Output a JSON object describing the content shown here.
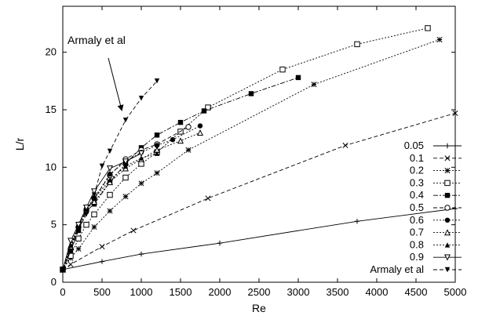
{
  "chart_data": {
    "type": "line",
    "title": "",
    "xlabel": "Re",
    "ylabel": "L/r",
    "xlim": [
      0,
      5000
    ],
    "ylim": [
      0,
      24
    ],
    "x_ticks": [
      0,
      500,
      1000,
      1500,
      2000,
      2500,
      3000,
      3500,
      4000,
      4500,
      5000
    ],
    "y_ticks": [
      0,
      5,
      10,
      15,
      20
    ],
    "grid": false,
    "legend_position": "right",
    "annotations": [
      {
        "text": "Armaly et al",
        "arrow_to_series": "Armaly et al"
      }
    ],
    "series": [
      {
        "name": "0.05",
        "marker": "plus",
        "dash": "solid",
        "points": [
          [
            0,
            1.1
          ],
          [
            500,
            1.8
          ],
          [
            1000,
            2.45
          ],
          [
            2000,
            3.4
          ],
          [
            3750,
            5.3
          ],
          [
            5000,
            6.4
          ]
        ]
      },
      {
        "name": "0.1",
        "marker": "cross",
        "dash": "dashed",
        "points": [
          [
            0,
            1.1
          ],
          [
            100,
            1.55
          ],
          [
            500,
            3.1
          ],
          [
            900,
            4.5
          ],
          [
            1850,
            7.3
          ],
          [
            3600,
            11.9
          ],
          [
            5000,
            14.7
          ]
        ]
      },
      {
        "name": "0.2",
        "marker": "asterisk",
        "dash": "dotted",
        "points": [
          [
            0,
            1.1
          ],
          [
            100,
            2.1
          ],
          [
            200,
            2.9
          ],
          [
            400,
            4.8
          ],
          [
            600,
            6.2
          ],
          [
            800,
            7.45
          ],
          [
            1000,
            8.6
          ],
          [
            1200,
            9.5
          ],
          [
            1600,
            11.5
          ],
          [
            3200,
            17.2
          ],
          [
            4800,
            21.1
          ]
        ]
      },
      {
        "name": "0.3",
        "marker": "square-open",
        "dash": "dotted",
        "points": [
          [
            0,
            1.1
          ],
          [
            100,
            2.3
          ],
          [
            200,
            3.8
          ],
          [
            300,
            5.0
          ],
          [
            400,
            5.9
          ],
          [
            600,
            7.6
          ],
          [
            800,
            9.1
          ],
          [
            1000,
            10.3
          ],
          [
            1200,
            11.3
          ],
          [
            1500,
            13.1
          ],
          [
            1850,
            15.2
          ],
          [
            2800,
            18.5
          ],
          [
            3750,
            20.7
          ],
          [
            4650,
            22.1
          ]
        ]
      },
      {
        "name": "0.4",
        "marker": "square-filled",
        "dash": "dashdot",
        "points": [
          [
            0,
            1.1
          ],
          [
            100,
            2.7
          ],
          [
            200,
            4.5
          ],
          [
            300,
            6.2
          ],
          [
            400,
            6.8
          ],
          [
            600,
            8.7
          ],
          [
            800,
            10.3
          ],
          [
            1000,
            11.7
          ],
          [
            1200,
            12.8
          ],
          [
            1500,
            13.9
          ],
          [
            1800,
            14.9
          ],
          [
            2400,
            16.4
          ],
          [
            3000,
            17.8
          ]
        ]
      },
      {
        "name": "0.5",
        "marker": "circle-open",
        "dash": "dashed",
        "points": [
          [
            0,
            1.1
          ],
          [
            100,
            2.9
          ],
          [
            200,
            4.8
          ],
          [
            300,
            6.3
          ],
          [
            400,
            7.3
          ],
          [
            600,
            9.3
          ],
          [
            800,
            10.7
          ],
          [
            1000,
            11.5
          ],
          [
            1200,
            12.0
          ],
          [
            1600,
            13.5
          ]
        ]
      },
      {
        "name": "0.6",
        "marker": "circle-filled",
        "dash": "dotted",
        "points": [
          [
            0,
            1.1
          ],
          [
            100,
            3.0
          ],
          [
            200,
            4.9
          ],
          [
            300,
            6.4
          ],
          [
            400,
            7.3
          ],
          [
            600,
            9.4
          ],
          [
            800,
            10.5
          ],
          [
            1000,
            11.3
          ],
          [
            1200,
            11.9
          ],
          [
            1400,
            12.4
          ],
          [
            1750,
            13.6
          ]
        ]
      },
      {
        "name": "0.7",
        "marker": "triangle-open",
        "dash": "dotted",
        "points": [
          [
            0,
            1.1
          ],
          [
            100,
            3.1
          ],
          [
            200,
            5.0
          ],
          [
            300,
            6.4
          ],
          [
            400,
            7.0
          ],
          [
            600,
            8.7
          ],
          [
            800,
            9.9
          ],
          [
            1000,
            10.7
          ],
          [
            1200,
            11.5
          ],
          [
            1500,
            12.3
          ],
          [
            1750,
            13.0
          ]
        ]
      },
      {
        "name": "0.8",
        "marker": "triangle-filled",
        "dash": "dotted",
        "points": [
          [
            0,
            1.1
          ],
          [
            100,
            3.2
          ],
          [
            200,
            5.0
          ],
          [
            300,
            6.4
          ],
          [
            400,
            7.3
          ],
          [
            600,
            8.9
          ],
          [
            800,
            10.1
          ],
          [
            1000,
            10.8
          ],
          [
            1200,
            11.2
          ]
        ]
      },
      {
        "name": "0.9",
        "marker": "triangle-down-open",
        "dash": "solid",
        "points": [
          [
            0,
            1.1
          ],
          [
            100,
            3.6
          ],
          [
            200,
            5.0
          ],
          [
            300,
            6.5
          ],
          [
            400,
            7.9
          ],
          [
            600,
            9.9
          ],
          [
            800,
            10.5
          ],
          [
            1000,
            11.2
          ]
        ]
      },
      {
        "name": "Armaly et al",
        "marker": "triangle-down-filled",
        "dash": "dashed",
        "points": [
          [
            0,
            1.1
          ],
          [
            100,
            2.7
          ],
          [
            200,
            4.6
          ],
          [
            300,
            5.9
          ],
          [
            400,
            7.6
          ],
          [
            500,
            10.1
          ],
          [
            600,
            11.4
          ],
          [
            800,
            14.1
          ],
          [
            1000,
            16.0
          ],
          [
            1200,
            17.5
          ]
        ]
      }
    ]
  }
}
